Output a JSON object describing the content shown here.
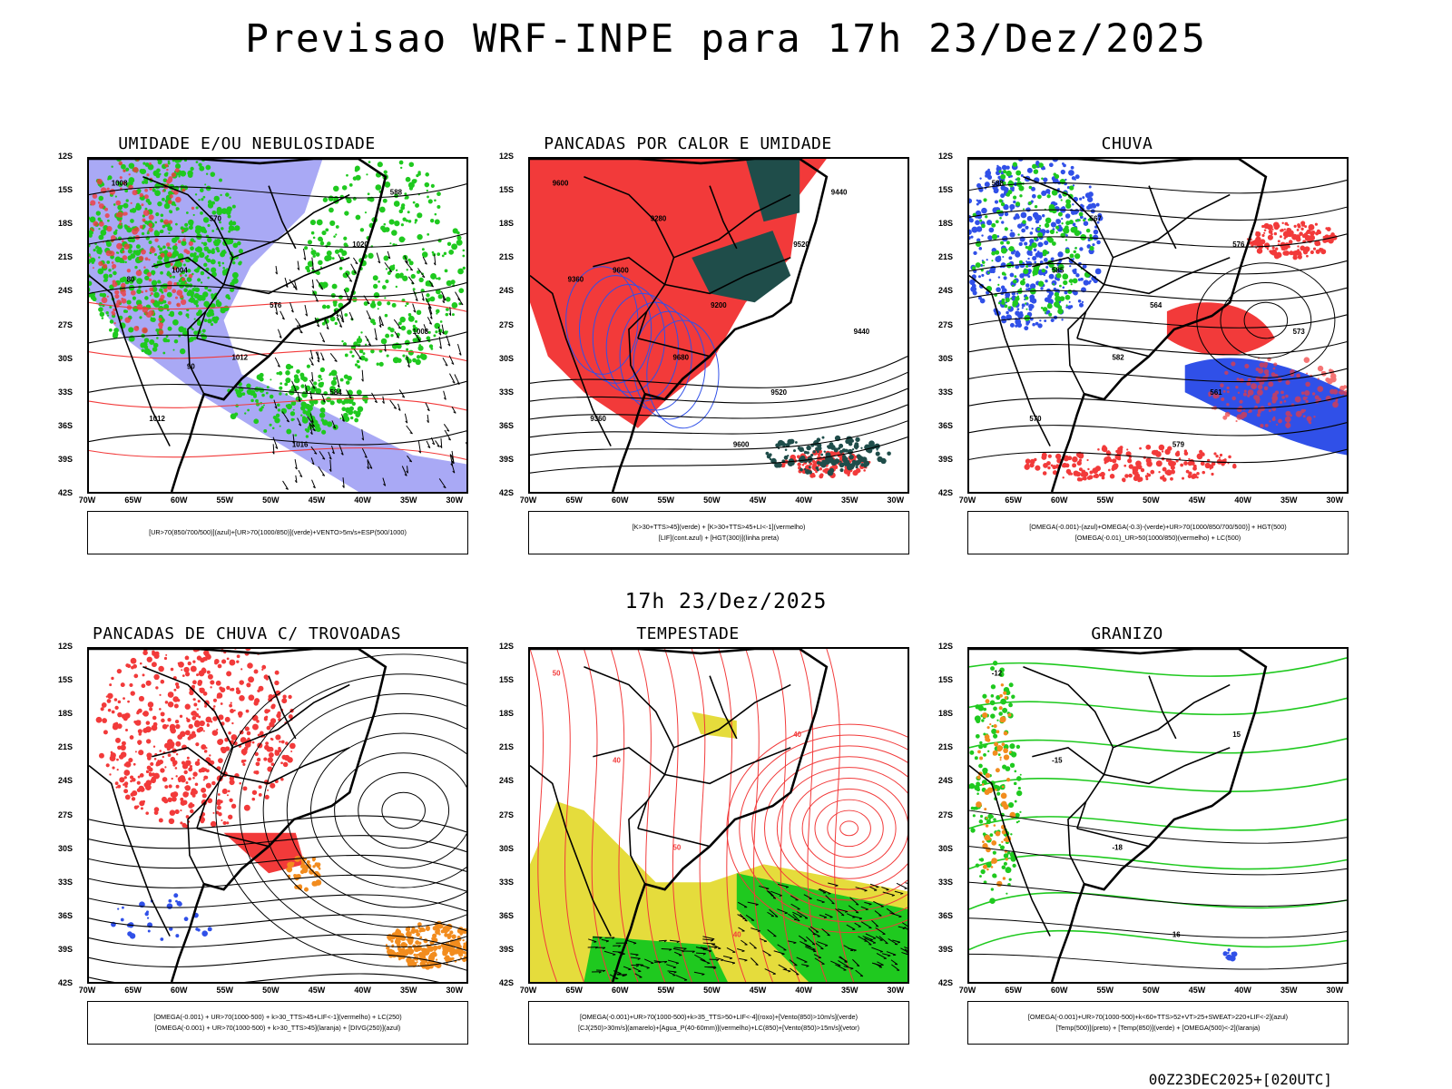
{
  "title": "Previsao WRF-INPE  para 17h 23/Dez/2025",
  "mid_time": "17h 23/Dez/2025",
  "footer": "00Z23DEC2025+[020UTC]",
  "axes": {
    "lat_labels": [
      "12S",
      "15S",
      "18S",
      "21S",
      "24S",
      "27S",
      "30S",
      "33S",
      "36S",
      "39S",
      "42S"
    ],
    "lon_labels": [
      "70W",
      "65W",
      "60W",
      "55W",
      "50W",
      "45W",
      "40W",
      "35W",
      "30W"
    ]
  },
  "colors": {
    "blue": "#8c8cf2",
    "green": "#1fc91f",
    "red": "#f23a3a",
    "dark": "#1f4d4a",
    "yellow": "#e5dc3c",
    "orange": "#f28c1e",
    "contour_blue": "#3050e8"
  },
  "panels": [
    {
      "id": "umidade",
      "title": "UMIDADE E/OU NEBULOSIDADE",
      "legend": [
        "[UR>70(850/700/500)](azul)+[UR>70(1000/850)](verde)+VENTO>5m/s+ESP(500/1000)"
      ],
      "contour_labels": [
        "1008",
        "1004",
        "1012",
        "1016",
        "1020",
        "1008",
        "1012",
        "570",
        "576",
        "584",
        "588",
        "80",
        "90"
      ]
    },
    {
      "id": "pancadas_calor",
      "title": "PANCADAS POR CALOR E UMIDADE",
      "legend": [
        "[K>30+TTS>45](verde) + [K>30+TTS>45+LI<-1](vermelho)",
        "[LIF](cont.azul) + [HGT(300)](linha preta)"
      ],
      "contour_labels": [
        "9600",
        "9600",
        "9680",
        "9600",
        "9520",
        "9440",
        "9360",
        "9280",
        "9200",
        "9520",
        "9440",
        "9360"
      ]
    },
    {
      "id": "chuva",
      "title": "CHUVA",
      "legend": [
        "[OMEGA(-0.001)-(azul)+OMEGA(-0.3)-(verde)+UR>70(1000/850/700/500)] + HGT(500)",
        "[OMEGA(-0.01)_UR>50(1000/850)(vermelho) + LC(500)"
      ],
      "contour_labels": [
        "588",
        "585",
        "582",
        "579",
        "576",
        "573",
        "570",
        "567",
        "564",
        "561"
      ]
    },
    {
      "id": "trovoadas",
      "title": "PANCADAS DE CHUVA C/ TROVOADAS",
      "legend": [
        "[OMEGA(-0.001) + UR>70(1000-500) + k>30_TTS>45+LIF<-1](vermelho) + LC(250)",
        "[OMEGA(-0.001) + UR>70(1000-500) + k>30_TTS>45](laranja) + [DIVG(250)](azul)"
      ],
      "contour_labels": []
    },
    {
      "id": "tempestade",
      "title": "TEMPESTADE",
      "legend": [
        "[OMEGA(-0.001)+UR>70(1000-500)+k>35_TTS>50+LIF<-4](roxo)+[Vento(850)>10m/s](verde)",
        "[CJ(250)>30m/s](amarelo)+[Agua_P(40-60mm)](vermelho)+LC(850)+[Vento(850)>15m/s](vetor)"
      ],
      "contour_labels": [
        "50",
        "40",
        "50",
        "40",
        "40"
      ]
    },
    {
      "id": "granizo",
      "title": "GRANIZO",
      "legend": [
        "[OMEGA(-0.001)+UR>70(1000-500)+k<60+TTS>52+VT>25+SWEAT>220+LIF<-2](azul)",
        "[Temp(500)](preto) + [Temp(850)](verde) + [OMEGA(500)<-2](laranja)"
      ],
      "contour_labels": [
        "-12",
        "-15",
        "-18",
        "16",
        "15"
      ]
    }
  ]
}
